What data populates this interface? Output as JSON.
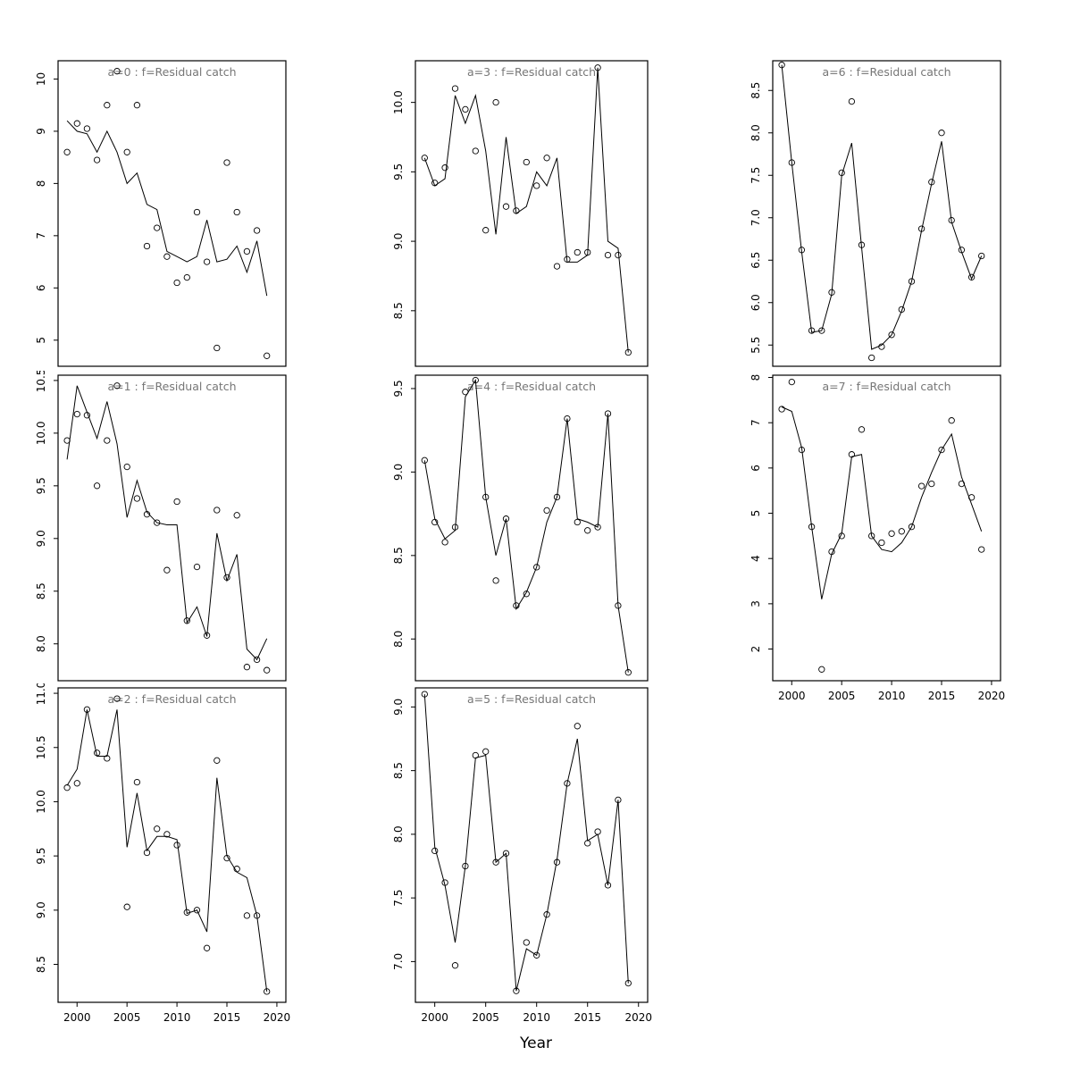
{
  "figure": {
    "background": "#ffffff",
    "axis_color": "#000000",
    "title_color": "#767676"
  },
  "chart_data": {
    "type": "scatter",
    "xlabel": "Year",
    "x": [
      1999,
      2000,
      2001,
      2002,
      2003,
      2004,
      2005,
      2006,
      2007,
      2008,
      2009,
      2010,
      2011,
      2012,
      2013,
      2014,
      2015,
      2016,
      2017,
      2018,
      2019
    ],
    "xticks": [
      2000,
      2005,
      2010,
      2015,
      2020
    ],
    "xtick_labels": [
      "2000",
      "2005",
      "2010",
      "2015",
      "2020"
    ],
    "xlim": [
      1998.1,
      2020.9
    ],
    "legend": "none",
    "grid": false,
    "marker": "open-circle",
    "panels": [
      {
        "id": "a0",
        "title": "a=0  :  f=Residual catch",
        "col": 0,
        "row": 0,
        "show_xaxis": false,
        "ylim": [
          4.5,
          10.35
        ],
        "yticks": [
          5,
          6,
          7,
          8,
          9,
          10
        ],
        "ytick_labels": [
          "5",
          "6",
          "7",
          "8",
          "9",
          "10"
        ],
        "points": [
          8.6,
          9.15,
          9.05,
          8.45,
          9.5,
          10.15,
          8.6,
          9.5,
          6.8,
          7.15,
          6.6,
          6.1,
          6.2,
          7.45,
          6.5,
          4.85,
          8.4,
          7.45,
          6.7,
          7.1,
          4.7
        ],
        "line": [
          9.2,
          9.0,
          8.95,
          8.6,
          9.0,
          8.6,
          8.0,
          8.2,
          7.6,
          7.5,
          6.7,
          6.6,
          6.5,
          6.6,
          7.3,
          6.5,
          6.55,
          6.8,
          6.3,
          6.9,
          5.85
        ]
      },
      {
        "id": "a1",
        "title": "a=1  :  f=Residual catch",
        "col": 0,
        "row": 1,
        "show_xaxis": false,
        "ylim": [
          7.65,
          10.55
        ],
        "yticks": [
          8.0,
          8.5,
          9.0,
          9.5,
          10.0,
          10.5
        ],
        "ytick_labels": [
          "8.0",
          "8.5",
          "9.0",
          "9.5",
          "10.0",
          "10.5"
        ],
        "points": [
          9.93,
          10.18,
          10.17,
          9.5,
          9.93,
          10.45,
          9.68,
          9.38,
          9.23,
          9.15,
          8.7,
          9.35,
          8.22,
          8.73,
          8.08,
          9.27,
          8.63,
          9.22,
          7.78,
          7.85,
          7.75
        ],
        "line": [
          9.75,
          10.45,
          10.2,
          9.95,
          10.3,
          9.9,
          9.2,
          9.55,
          9.25,
          9.15,
          9.13,
          9.13,
          8.2,
          8.35,
          8.07,
          9.05,
          8.6,
          8.85,
          7.95,
          7.85,
          8.05
        ]
      },
      {
        "id": "a2",
        "title": "a=2  :  f=Residual catch",
        "col": 0,
        "row": 2,
        "show_xaxis": true,
        "ylim": [
          8.15,
          11.05
        ],
        "yticks": [
          8.5,
          9.0,
          9.5,
          10.0,
          10.5,
          11.0
        ],
        "ytick_labels": [
          "8.5",
          "9.0",
          "9.5",
          "10.0",
          "10.5",
          "11.0"
        ],
        "points": [
          10.13,
          10.17,
          10.85,
          10.45,
          10.4,
          10.95,
          9.03,
          10.18,
          9.53,
          9.75,
          9.7,
          9.6,
          8.98,
          9.0,
          8.65,
          10.38,
          9.48,
          9.38,
          8.95,
          8.95,
          8.25
        ],
        "line": [
          10.15,
          10.3,
          10.85,
          10.42,
          10.42,
          10.85,
          9.58,
          10.08,
          9.55,
          9.68,
          9.68,
          9.65,
          8.97,
          9.0,
          8.8,
          10.22,
          9.5,
          9.35,
          9.3,
          8.95,
          8.25
        ]
      },
      {
        "id": "a3",
        "title": "a=3  :  f=Residual catch",
        "col": 1,
        "row": 0,
        "show_xaxis": false,
        "ylim": [
          8.1,
          10.3
        ],
        "yticks": [
          8.5,
          9.0,
          9.5,
          10.0
        ],
        "ytick_labels": [
          "8.5",
          "9.0",
          "9.5",
          "10.0"
        ],
        "points": [
          9.6,
          9.42,
          9.53,
          10.1,
          9.95,
          9.65,
          9.08,
          10.0,
          9.25,
          9.22,
          9.57,
          9.4,
          9.6,
          8.82,
          8.87,
          8.92,
          8.92,
          10.25,
          8.9,
          8.9,
          8.2
        ],
        "line": [
          9.6,
          9.4,
          9.45,
          10.05,
          9.85,
          10.05,
          9.65,
          9.05,
          9.75,
          9.2,
          9.25,
          9.5,
          9.4,
          9.6,
          8.85,
          8.85,
          8.9,
          10.25,
          9.0,
          8.95,
          8.2
        ]
      },
      {
        "id": "a4",
        "title": "a=4  :  f=Residual catch",
        "col": 1,
        "row": 1,
        "show_xaxis": false,
        "ylim": [
          7.75,
          9.58
        ],
        "yticks": [
          8.0,
          8.5,
          9.0,
          9.5
        ],
        "ytick_labels": [
          "8.0",
          "8.5",
          "9.0",
          "9.5"
        ],
        "points": [
          9.07,
          8.7,
          8.58,
          8.67,
          9.48,
          9.55,
          8.85,
          8.35,
          8.72,
          8.2,
          8.27,
          8.43,
          8.77,
          8.85,
          9.32,
          8.7,
          8.65,
          8.67,
          9.35,
          8.2,
          7.8
        ],
        "line": [
          9.07,
          8.72,
          8.6,
          8.65,
          9.45,
          9.55,
          8.85,
          8.5,
          8.72,
          8.18,
          8.28,
          8.43,
          8.7,
          8.85,
          9.32,
          8.72,
          8.7,
          8.67,
          9.35,
          8.2,
          7.8
        ]
      },
      {
        "id": "a5",
        "title": "a=5  :  f=Residual catch",
        "col": 1,
        "row": 2,
        "show_xaxis": true,
        "ylim": [
          6.68,
          9.15
        ],
        "yticks": [
          7.0,
          7.5,
          8.0,
          8.5,
          9.0
        ],
        "ytick_labels": [
          "7.0",
          "7.5",
          "8.0",
          "8.5",
          "9.0"
        ],
        "points": [
          9.1,
          7.87,
          7.62,
          6.97,
          7.75,
          8.62,
          8.65,
          7.78,
          7.85,
          6.77,
          7.15,
          7.05,
          7.37,
          7.78,
          8.4,
          8.85,
          7.93,
          8.02,
          7.6,
          8.27,
          6.83
        ],
        "line": [
          9.1,
          7.9,
          7.6,
          7.15,
          7.75,
          8.6,
          8.62,
          7.78,
          7.85,
          6.77,
          7.1,
          7.05,
          7.37,
          7.8,
          8.4,
          8.75,
          7.95,
          8.0,
          7.6,
          8.27,
          6.83
        ]
      },
      {
        "id": "a6",
        "title": "a=6  :  f=Residual catch",
        "col": 2,
        "row": 0,
        "show_xaxis": false,
        "ylim": [
          5.25,
          8.85
        ],
        "yticks": [
          5.5,
          6.0,
          6.5,
          7.0,
          7.5,
          8.0,
          8.5
        ],
        "ytick_labels": [
          "5.5",
          "6.0",
          "6.5",
          "7.0",
          "7.5",
          "8.0",
          "8.5"
        ],
        "points": [
          8.8,
          7.65,
          6.62,
          5.67,
          5.67,
          6.12,
          7.53,
          8.37,
          6.68,
          5.35,
          5.48,
          5.62,
          5.92,
          6.25,
          6.87,
          7.42,
          8.0,
          6.97,
          6.62,
          6.3,
          6.55
        ],
        "line": [
          8.8,
          7.65,
          6.6,
          5.65,
          5.67,
          6.1,
          7.5,
          7.88,
          6.65,
          5.45,
          5.5,
          5.62,
          5.9,
          6.25,
          6.85,
          7.4,
          7.9,
          6.95,
          6.6,
          6.28,
          6.55
        ]
      },
      {
        "id": "a7",
        "title": "a=7  :  f=Residual catch",
        "col": 2,
        "row": 1,
        "show_xaxis": true,
        "ylim": [
          1.3,
          8.05
        ],
        "yticks": [
          2,
          3,
          4,
          5,
          6,
          7,
          8
        ],
        "ytick_labels": [
          "2",
          "3",
          "4",
          "5",
          "6",
          "7",
          "8"
        ],
        "points": [
          7.3,
          7.9,
          6.4,
          4.7,
          1.55,
          4.15,
          4.5,
          6.3,
          6.85,
          4.5,
          4.35,
          4.55,
          4.6,
          4.7,
          5.6,
          5.65,
          6.4,
          7.05,
          5.65,
          5.35,
          4.2
        ],
        "line": [
          7.35,
          7.25,
          6.45,
          4.7,
          3.1,
          4.1,
          4.55,
          6.25,
          6.3,
          4.5,
          4.2,
          4.15,
          4.35,
          4.7,
          5.35,
          5.9,
          6.4,
          6.75,
          5.8,
          5.2,
          4.6
        ]
      }
    ]
  }
}
